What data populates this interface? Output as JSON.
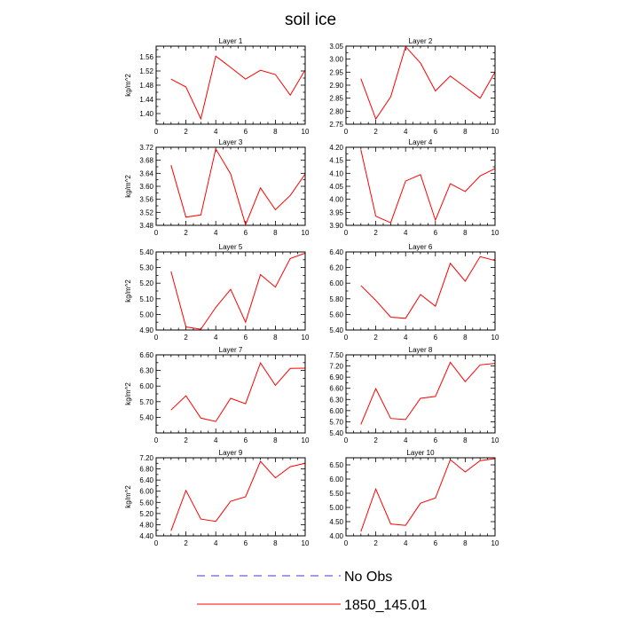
{
  "figure": {
    "title": "soil ice",
    "legend": [
      {
        "label": "No Obs",
        "color": "#3a3ad0",
        "dash": true
      },
      {
        "label": "1850_145.01",
        "color": "#ff0000",
        "dash": false
      }
    ]
  },
  "chart_data": [
    {
      "type": "line",
      "title": "Layer 1",
      "ylabel": "kg/m^2",
      "x": [
        1,
        2,
        3,
        4,
        5,
        6,
        7,
        8,
        9,
        10
      ],
      "xlim": [
        0,
        10
      ],
      "xticks": [
        0,
        2,
        4,
        6,
        8,
        10
      ],
      "ylim": [
        1.37,
        1.59
      ],
      "yticks": [
        "1.40",
        "1.44",
        "1.48",
        "1.52",
        "1.56"
      ],
      "series": [
        {
          "color": "#ff0000",
          "values": [
            1.497,
            1.475,
            1.385,
            1.562,
            1.53,
            1.497,
            1.522,
            1.51,
            1.452,
            1.523
          ]
        }
      ]
    },
    {
      "type": "line",
      "title": "Layer 2",
      "ylabel": "",
      "x": [
        1,
        2,
        3,
        4,
        5,
        6,
        7,
        8,
        9,
        10
      ],
      "xlim": [
        0,
        10
      ],
      "xticks": [
        0,
        2,
        4,
        6,
        8,
        10
      ],
      "ylim": [
        2.75,
        3.05
      ],
      "yticks": [
        "2.75",
        "2.80",
        "2.85",
        "2.90",
        "2.95",
        "3.00",
        "3.05"
      ],
      "series": [
        {
          "color": "#ff0000",
          "values": [
            2.925,
            2.77,
            2.855,
            3.048,
            2.985,
            2.878,
            2.935,
            2.893,
            2.85,
            2.95
          ]
        }
      ]
    },
    {
      "type": "line",
      "title": "Layer 3",
      "ylabel": "kg/m^2",
      "x": [
        1,
        2,
        3,
        4,
        5,
        6,
        7,
        8,
        9,
        10
      ],
      "xlim": [
        0,
        10
      ],
      "xticks": [
        0,
        2,
        4,
        6,
        8,
        10
      ],
      "ylim": [
        3.48,
        3.72
      ],
      "yticks": [
        "3.48",
        "3.52",
        "3.56",
        "3.60",
        "3.64",
        "3.68",
        "3.72"
      ],
      "series": [
        {
          "color": "#ff0000",
          "values": [
            3.665,
            3.505,
            3.512,
            3.715,
            3.638,
            3.482,
            3.595,
            3.528,
            3.572,
            3.638
          ]
        }
      ]
    },
    {
      "type": "line",
      "title": "Layer 4",
      "ylabel": "",
      "x": [
        1,
        2,
        3,
        4,
        5,
        6,
        7,
        8,
        9,
        10
      ],
      "xlim": [
        0,
        10
      ],
      "xticks": [
        0,
        2,
        4,
        6,
        8,
        10
      ],
      "ylim": [
        3.9,
        4.2
      ],
      "yticks": [
        "3.90",
        "3.95",
        "4.00",
        "4.05",
        "4.10",
        "4.15",
        "4.20"
      ],
      "series": [
        {
          "color": "#ff0000",
          "values": [
            4.19,
            3.935,
            3.91,
            4.07,
            4.095,
            3.92,
            4.06,
            4.03,
            4.09,
            4.118
          ]
        }
      ]
    },
    {
      "type": "line",
      "title": "Layer 5",
      "ylabel": "kg/m^2",
      "x": [
        1,
        2,
        3,
        4,
        5,
        6,
        7,
        8,
        9,
        10
      ],
      "xlim": [
        0,
        10
      ],
      "xticks": [
        0,
        2,
        4,
        6,
        8,
        10
      ],
      "ylim": [
        4.9,
        5.4
      ],
      "yticks": [
        "4.90",
        "5.00",
        "5.10",
        "5.20",
        "5.30",
        "5.40"
      ],
      "series": [
        {
          "color": "#ff0000",
          "values": [
            5.275,
            4.92,
            4.905,
            5.045,
            5.16,
            4.95,
            5.255,
            5.175,
            5.358,
            5.392
          ]
        }
      ]
    },
    {
      "type": "line",
      "title": "Layer 6",
      "ylabel": "",
      "x": [
        1,
        2,
        3,
        4,
        5,
        6,
        7,
        8,
        9,
        10
      ],
      "xlim": [
        0,
        10
      ],
      "xticks": [
        0,
        2,
        4,
        6,
        8,
        10
      ],
      "ylim": [
        5.4,
        6.4
      ],
      "yticks": [
        "5.40",
        "5.60",
        "5.80",
        "6.00",
        "6.20",
        "6.40"
      ],
      "series": [
        {
          "color": "#ff0000",
          "values": [
            5.97,
            5.78,
            5.565,
            5.55,
            5.855,
            5.705,
            6.255,
            6.025,
            6.34,
            6.29
          ]
        }
      ]
    },
    {
      "type": "line",
      "title": "Layer 7",
      "ylabel": "kg/m^2",
      "x": [
        1,
        2,
        3,
        4,
        5,
        6,
        7,
        8,
        9,
        10
      ],
      "xlim": [
        0,
        10
      ],
      "xticks": [
        0,
        2,
        4,
        6,
        8,
        10
      ],
      "ylim": [
        5.1,
        6.6
      ],
      "yticks": [
        "5.40",
        "5.70",
        "6.00",
        "6.30",
        "6.60"
      ],
      "series": [
        {
          "color": "#ff0000",
          "values": [
            5.54,
            5.815,
            5.385,
            5.32,
            5.765,
            5.66,
            6.445,
            6.015,
            6.34,
            6.345
          ]
        }
      ]
    },
    {
      "type": "line",
      "title": "Layer 8",
      "ylabel": "",
      "x": [
        1,
        2,
        3,
        4,
        5,
        6,
        7,
        8,
        9,
        10
      ],
      "xlim": [
        0,
        10
      ],
      "xticks": [
        0,
        2,
        4,
        6,
        8,
        10
      ],
      "ylim": [
        5.4,
        7.5
      ],
      "yticks": [
        "5.40",
        "5.70",
        "6.00",
        "6.30",
        "6.60",
        "6.90",
        "7.20",
        "7.50"
      ],
      "series": [
        {
          "color": "#ff0000",
          "values": [
            5.63,
            6.59,
            5.79,
            5.76,
            6.33,
            6.38,
            7.3,
            6.78,
            7.23,
            7.27
          ]
        }
      ]
    },
    {
      "type": "line",
      "title": "Layer 9",
      "ylabel": "kg/m^2",
      "x": [
        1,
        2,
        3,
        4,
        5,
        6,
        7,
        8,
        9,
        10
      ],
      "xlim": [
        0,
        10
      ],
      "xticks": [
        0,
        2,
        4,
        6,
        8,
        10
      ],
      "ylim": [
        4.4,
        7.2
      ],
      "yticks": [
        "4.40",
        "4.80",
        "5.20",
        "5.60",
        "6.00",
        "6.40",
        "6.80",
        "7.20"
      ],
      "series": [
        {
          "color": "#ff0000",
          "values": [
            4.58,
            6.03,
            5.0,
            4.92,
            5.64,
            5.8,
            7.07,
            6.48,
            6.88,
            7.0
          ]
        }
      ]
    },
    {
      "type": "line",
      "title": "Layer 10",
      "ylabel": "",
      "x": [
        1,
        2,
        3,
        4,
        5,
        6,
        7,
        8,
        9,
        10
      ],
      "xlim": [
        0,
        10
      ],
      "xticks": [
        0,
        2,
        4,
        6,
        8,
        10
      ],
      "ylim": [
        4.0,
        6.75
      ],
      "yticks": [
        "4.00",
        "4.50",
        "5.00",
        "5.50",
        "6.00",
        "6.50"
      ],
      "series": [
        {
          "color": "#ff0000",
          "values": [
            4.15,
            5.65,
            4.42,
            4.37,
            5.15,
            5.33,
            6.68,
            6.25,
            6.65,
            6.72
          ]
        }
      ]
    }
  ]
}
